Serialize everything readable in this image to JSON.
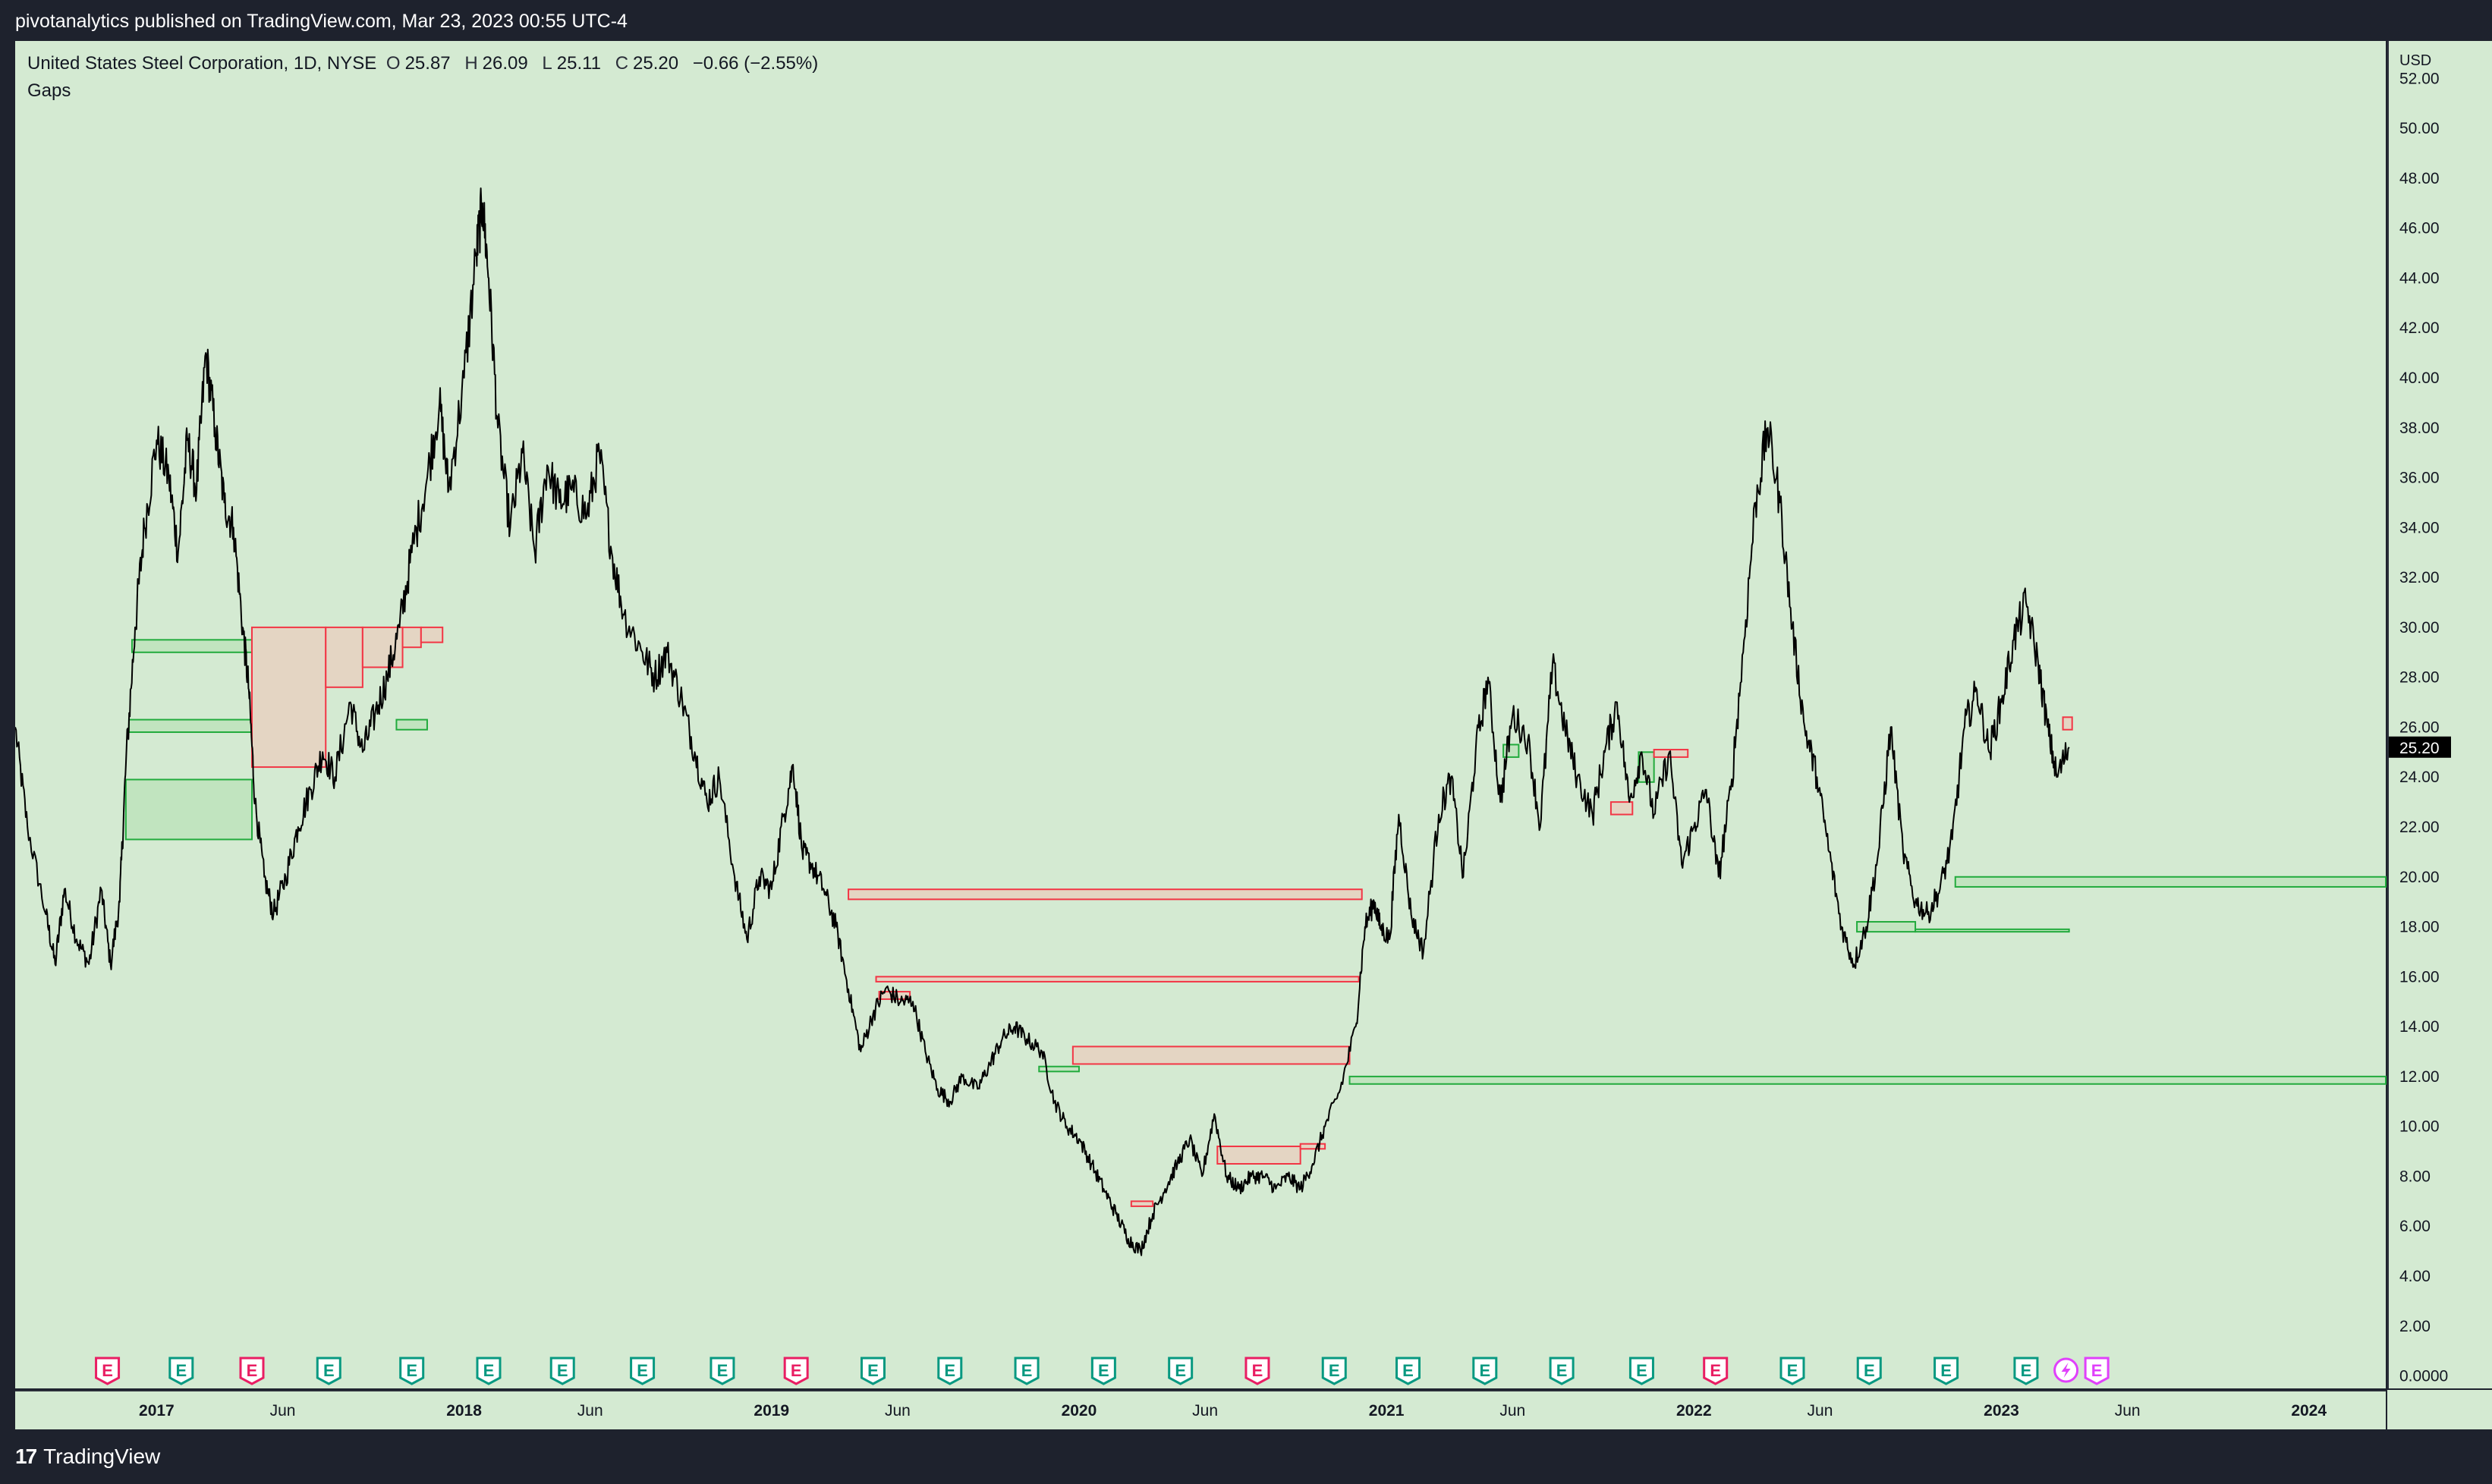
{
  "header": {
    "publisher_line": "pivotanalytics published on TradingView.com, Mar 23, 2023 00:55 UTC-4"
  },
  "legend": {
    "symbol": "United States Steel Corporation, 1D, NYSE",
    "open_label": "O",
    "open": "25.87",
    "high_label": "H",
    "high": "26.09",
    "low_label": "L",
    "low": "25.11",
    "close_label": "C",
    "close": "25.20",
    "change": "−0.66 (−2.55%)",
    "indicator": "Gaps"
  },
  "footer": {
    "brand": "TradingView",
    "brand_mark": "17"
  },
  "colors": {
    "background": "#d4ead2",
    "price_line": "#000000",
    "gap_up": "#22ab3d",
    "gap_up_fill": "#bfe3bd",
    "gap_down": "#f23645",
    "gap_down_fill": "#e6d3c1",
    "earnings_red": "#e91e63",
    "earnings_teal": "#089981",
    "event_purple": "#e040fb"
  },
  "chart_data": {
    "type": "line",
    "title": "United States Steel Corporation, 1D, NYSE",
    "currency": "USD",
    "last_price": "25.20",
    "y_axis": {
      "unit": "USD",
      "ylim": [
        -0.5,
        53.5
      ],
      "ticks": [
        "52.00",
        "50.00",
        "48.00",
        "46.00",
        "44.00",
        "42.00",
        "40.00",
        "38.00",
        "36.00",
        "34.00",
        "32.00",
        "30.00",
        "28.00",
        "26.00",
        "24.00",
        "22.00",
        "20.00",
        "18.00",
        "16.00",
        "14.00",
        "12.00",
        "10.00",
        "8.00",
        "6.00",
        "4.00",
        "2.00",
        "0.0000"
      ]
    },
    "x_axis": {
      "xlim": [
        2016.54,
        2024.25
      ],
      "ticks": [
        {
          "label": "2017",
          "x": 2017.0,
          "bold": true
        },
        {
          "label": "Jun",
          "x": 2017.41
        },
        {
          "label": "2018",
          "x": 2018.0,
          "bold": true
        },
        {
          "label": "Jun",
          "x": 2018.41
        },
        {
          "label": "2019",
          "x": 2019.0,
          "bold": true
        },
        {
          "label": "Jun",
          "x": 2019.41
        },
        {
          "label": "2020",
          "x": 2020.0,
          "bold": true
        },
        {
          "label": "Jun",
          "x": 2020.41
        },
        {
          "label": "2021",
          "x": 2021.0,
          "bold": true
        },
        {
          "label": "Jun",
          "x": 2021.41
        },
        {
          "label": "2022",
          "x": 2022.0,
          "bold": true
        },
        {
          "label": "Jun",
          "x": 2022.41
        },
        {
          "label": "2023",
          "x": 2023.0,
          "bold": true
        },
        {
          "label": "Jun",
          "x": 2023.41
        },
        {
          "label": "2024",
          "x": 2024.0,
          "bold": true
        }
      ]
    },
    "price_series": {
      "name": "Close",
      "points": [
        [
          2016.54,
          26.0
        ],
        [
          2016.58,
          22.0
        ],
        [
          2016.64,
          18.5
        ],
        [
          2016.67,
          16.5
        ],
        [
          2016.7,
          19.5
        ],
        [
          2016.74,
          17.5
        ],
        [
          2016.78,
          16.5
        ],
        [
          2016.82,
          19.5
        ],
        [
          2016.85,
          16.5
        ],
        [
          2016.88,
          19.0
        ],
        [
          2016.9,
          24.5
        ],
        [
          2016.93,
          30.0
        ],
        [
          2016.96,
          34.0
        ],
        [
          2017.0,
          37.5
        ],
        [
          2017.04,
          36.0
        ],
        [
          2017.07,
          33.0
        ],
        [
          2017.1,
          37.5
        ],
        [
          2017.13,
          35.5
        ],
        [
          2017.16,
          41.0
        ],
        [
          2017.19,
          38.0
        ],
        [
          2017.22,
          35.0
        ],
        [
          2017.25,
          34.0
        ],
        [
          2017.28,
          30.0
        ],
        [
          2017.3,
          27.5
        ],
        [
          2017.32,
          23.0
        ],
        [
          2017.35,
          20.0
        ],
        [
          2017.38,
          18.5
        ],
        [
          2017.42,
          20.0
        ],
        [
          2017.46,
          22.0
        ],
        [
          2017.5,
          23.5
        ],
        [
          2017.54,
          25.0
        ],
        [
          2017.58,
          24.0
        ],
        [
          2017.63,
          27.0
        ],
        [
          2017.67,
          25.0
        ],
        [
          2017.71,
          26.5
        ],
        [
          2017.75,
          28.0
        ],
        [
          2017.79,
          30.0
        ],
        [
          2017.83,
          33.0
        ],
        [
          2017.88,
          36.0
        ],
        [
          2017.92,
          39.0
        ],
        [
          2017.95,
          35.5
        ],
        [
          2018.0,
          40.0
        ],
        [
          2018.04,
          45.0
        ],
        [
          2018.06,
          47.0
        ],
        [
          2018.08,
          44.0
        ],
        [
          2018.11,
          38.0
        ],
        [
          2018.15,
          34.0
        ],
        [
          2018.19,
          37.0
        ],
        [
          2018.23,
          33.0
        ],
        [
          2018.27,
          36.5
        ],
        [
          2018.31,
          35.0
        ],
        [
          2018.35,
          35.5
        ],
        [
          2018.4,
          34.5
        ],
        [
          2018.44,
          37.0
        ],
        [
          2018.48,
          33.0
        ],
        [
          2018.52,
          30.5
        ],
        [
          2018.58,
          29.0
        ],
        [
          2018.62,
          28.0
        ],
        [
          2018.66,
          29.0
        ],
        [
          2018.71,
          27.0
        ],
        [
          2018.75,
          25.0
        ],
        [
          2018.79,
          23.0
        ],
        [
          2018.83,
          24.0
        ],
        [
          2018.88,
          20.0
        ],
        [
          2018.92,
          17.5
        ],
        [
          2018.96,
          20.0
        ],
        [
          2019.0,
          19.5
        ],
        [
          2019.04,
          22.5
        ],
        [
          2019.07,
          24.5
        ],
        [
          2019.1,
          21.0
        ],
        [
          2019.13,
          20.5
        ],
        [
          2019.17,
          19.5
        ],
        [
          2019.21,
          18.0
        ],
        [
          2019.25,
          15.5
        ],
        [
          2019.29,
          13.0
        ],
        [
          2019.33,
          14.5
        ],
        [
          2019.37,
          15.5
        ],
        [
          2019.42,
          15.0
        ],
        [
          2019.46,
          15.0
        ],
        [
          2019.5,
          13.0
        ],
        [
          2019.54,
          11.5
        ],
        [
          2019.58,
          11.0
        ],
        [
          2019.62,
          12.0
        ],
        [
          2019.67,
          11.5
        ],
        [
          2019.71,
          12.5
        ],
        [
          2019.75,
          13.5
        ],
        [
          2019.79,
          14.0
        ],
        [
          2019.83,
          13.5
        ],
        [
          2019.88,
          13.0
        ],
        [
          2019.92,
          11.0
        ],
        [
          2019.96,
          10.0
        ],
        [
          2020.0,
          9.5
        ],
        [
          2020.04,
          8.5
        ],
        [
          2020.08,
          7.5
        ],
        [
          2020.12,
          6.5
        ],
        [
          2020.16,
          5.5
        ],
        [
          2020.2,
          5.0
        ],
        [
          2020.24,
          6.5
        ],
        [
          2020.28,
          7.5
        ],
        [
          2020.32,
          8.5
        ],
        [
          2020.36,
          9.5
        ],
        [
          2020.4,
          8.0
        ],
        [
          2020.44,
          10.5
        ],
        [
          2020.48,
          8.0
        ],
        [
          2020.52,
          7.5
        ],
        [
          2020.56,
          8.0
        ],
        [
          2020.6,
          8.0
        ],
        [
          2020.64,
          7.5
        ],
        [
          2020.68,
          8.0
        ],
        [
          2020.72,
          7.5
        ],
        [
          2020.76,
          8.5
        ],
        [
          2020.8,
          10.0
        ],
        [
          2020.85,
          11.5
        ],
        [
          2020.9,
          14.0
        ],
        [
          2020.93,
          18.0
        ],
        [
          2020.96,
          19.0
        ],
        [
          2020.98,
          18.0
        ],
        [
          2021.01,
          17.5
        ],
        [
          2021.04,
          22.5
        ],
        [
          2021.08,
          18.5
        ],
        [
          2021.12,
          17.0
        ],
        [
          2021.17,
          22.5
        ],
        [
          2021.21,
          24.0
        ],
        [
          2021.25,
          20.0
        ],
        [
          2021.29,
          25.0
        ],
        [
          2021.33,
          28.0
        ],
        [
          2021.37,
          23.0
        ],
        [
          2021.41,
          26.5
        ],
        [
          2021.46,
          25.5
        ],
        [
          2021.5,
          22.0
        ],
        [
          2021.54,
          28.5
        ],
        [
          2021.58,
          26.0
        ],
        [
          2021.62,
          24.0
        ],
        [
          2021.67,
          22.5
        ],
        [
          2021.71,
          25.0
        ],
        [
          2021.75,
          27.0
        ],
        [
          2021.79,
          23.0
        ],
        [
          2021.83,
          25.0
        ],
        [
          2021.87,
          22.5
        ],
        [
          2021.92,
          25.0
        ],
        [
          2021.96,
          20.5
        ],
        [
          2022.0,
          22.0
        ],
        [
          2022.04,
          23.5
        ],
        [
          2022.08,
          20.0
        ],
        [
          2022.12,
          23.5
        ],
        [
          2022.16,
          29.0
        ],
        [
          2022.2,
          35.0
        ],
        [
          2022.24,
          38.0
        ],
        [
          2022.28,
          35.0
        ],
        [
          2022.32,
          30.0
        ],
        [
          2022.36,
          26.0
        ],
        [
          2022.4,
          24.0
        ],
        [
          2022.44,
          21.0
        ],
        [
          2022.48,
          18.0
        ],
        [
          2022.52,
          16.5
        ],
        [
          2022.56,
          18.0
        ],
        [
          2022.6,
          21.0
        ],
        [
          2022.64,
          26.0
        ],
        [
          2022.68,
          21.0
        ],
        [
          2022.72,
          19.0
        ],
        [
          2022.76,
          18.5
        ],
        [
          2022.8,
          19.5
        ],
        [
          2022.84,
          21.5
        ],
        [
          2022.88,
          26.0
        ],
        [
          2022.92,
          27.5
        ],
        [
          2022.96,
          25.0
        ],
        [
          2023.0,
          27.0
        ],
        [
          2023.04,
          29.5
        ],
        [
          2023.08,
          31.0
        ],
        [
          2023.12,
          28.5
        ],
        [
          2023.15,
          26.0
        ],
        [
          2023.18,
          24.0
        ],
        [
          2023.22,
          25.2
        ]
      ]
    },
    "gap_zones": [
      {
        "dir": "up",
        "x0": 2016.92,
        "x1": 2017.31,
        "y0": 29.0,
        "y1": 29.5
      },
      {
        "dir": "up",
        "x0": 2016.91,
        "x1": 2017.31,
        "y0": 25.8,
        "y1": 26.3
      },
      {
        "dir": "up",
        "x0": 2016.9,
        "x1": 2017.31,
        "y0": 21.5,
        "y1": 23.9
      },
      {
        "dir": "down",
        "x0": 2017.31,
        "x1": 2017.55,
        "y0": 24.4,
        "y1": 30.0
      },
      {
        "dir": "down",
        "x0": 2017.55,
        "x1": 2017.67,
        "y0": 27.6,
        "y1": 30.0
      },
      {
        "dir": "down",
        "x0": 2017.67,
        "x1": 2017.8,
        "y0": 28.4,
        "y1": 30.0
      },
      {
        "dir": "down",
        "x0": 2017.8,
        "x1": 2017.86,
        "y0": 29.2,
        "y1": 30.0
      },
      {
        "dir": "down",
        "x0": 2017.86,
        "x1": 2017.93,
        "y0": 29.4,
        "y1": 30.0
      },
      {
        "dir": "up",
        "x0": 2017.78,
        "x1": 2017.88,
        "y0": 25.9,
        "y1": 26.3
      },
      {
        "dir": "down",
        "x0": 2019.25,
        "x1": 2020.92,
        "y0": 19.1,
        "y1": 19.5
      },
      {
        "dir": "down",
        "x0": 2019.34,
        "x1": 2020.91,
        "y0": 15.8,
        "y1": 16.0
      },
      {
        "dir": "down",
        "x0": 2019.35,
        "x1": 2019.45,
        "y0": 15.1,
        "y1": 15.4
      },
      {
        "dir": "down",
        "x0": 2019.98,
        "x1": 2020.88,
        "y0": 12.5,
        "y1": 13.2
      },
      {
        "dir": "up",
        "x0": 2019.87,
        "x1": 2020.0,
        "y0": 12.2,
        "y1": 12.4
      },
      {
        "dir": "down",
        "x0": 2020.45,
        "x1": 2020.72,
        "y0": 8.5,
        "y1": 9.2
      },
      {
        "dir": "down",
        "x0": 2020.72,
        "x1": 2020.8,
        "y0": 9.1,
        "y1": 9.3
      },
      {
        "dir": "down",
        "x0": 2020.17,
        "x1": 2020.24,
        "y0": 6.8,
        "y1": 7.0
      },
      {
        "dir": "up",
        "x0": 2020.88,
        "x1": 2024.25,
        "y0": 11.7,
        "y1": 12.0
      },
      {
        "dir": "up",
        "x0": 2022.85,
        "x1": 2024.25,
        "y0": 19.6,
        "y1": 20.0
      },
      {
        "dir": "up",
        "x0": 2022.53,
        "x1": 2022.72,
        "y0": 17.8,
        "y1": 18.2
      },
      {
        "dir": "up",
        "x0": 2022.72,
        "x1": 2023.22,
        "y0": 17.8,
        "y1": 17.9
      },
      {
        "dir": "up",
        "x0": 2021.82,
        "x1": 2021.87,
        "y0": 23.8,
        "y1": 25.0
      },
      {
        "dir": "up",
        "x0": 2021.38,
        "x1": 2021.43,
        "y0": 24.8,
        "y1": 25.3
      },
      {
        "dir": "down",
        "x0": 2021.87,
        "x1": 2021.98,
        "y0": 24.8,
        "y1": 25.1
      },
      {
        "dir": "down",
        "x0": 2021.73,
        "x1": 2021.8,
        "y0": 22.5,
        "y1": 23.0
      },
      {
        "dir": "down",
        "x0": 2023.2,
        "x1": 2023.23,
        "y0": 25.9,
        "y1": 26.4
      }
    ],
    "events": [
      {
        "x": 2016.84,
        "type": "E",
        "color": "red"
      },
      {
        "x": 2017.08,
        "type": "E",
        "color": "teal"
      },
      {
        "x": 2017.31,
        "type": "E",
        "color": "red"
      },
      {
        "x": 2017.56,
        "type": "E",
        "color": "teal"
      },
      {
        "x": 2017.83,
        "type": "E",
        "color": "teal"
      },
      {
        "x": 2018.08,
        "type": "E",
        "color": "teal"
      },
      {
        "x": 2018.32,
        "type": "E",
        "color": "teal"
      },
      {
        "x": 2018.58,
        "type": "E",
        "color": "teal"
      },
      {
        "x": 2018.84,
        "type": "E",
        "color": "teal"
      },
      {
        "x": 2019.08,
        "type": "E",
        "color": "red"
      },
      {
        "x": 2019.33,
        "type": "E",
        "color": "teal"
      },
      {
        "x": 2019.58,
        "type": "E",
        "color": "teal"
      },
      {
        "x": 2019.83,
        "type": "E",
        "color": "teal"
      },
      {
        "x": 2020.08,
        "type": "E",
        "color": "teal"
      },
      {
        "x": 2020.33,
        "type": "E",
        "color": "teal"
      },
      {
        "x": 2020.58,
        "type": "E",
        "color": "red"
      },
      {
        "x": 2020.83,
        "type": "E",
        "color": "teal"
      },
      {
        "x": 2021.07,
        "type": "E",
        "color": "teal"
      },
      {
        "x": 2021.32,
        "type": "E",
        "color": "teal"
      },
      {
        "x": 2021.57,
        "type": "E",
        "color": "teal"
      },
      {
        "x": 2021.83,
        "type": "E",
        "color": "teal"
      },
      {
        "x": 2022.07,
        "type": "E",
        "color": "red"
      },
      {
        "x": 2022.32,
        "type": "E",
        "color": "teal"
      },
      {
        "x": 2022.57,
        "type": "E",
        "color": "teal"
      },
      {
        "x": 2022.82,
        "type": "E",
        "color": "teal"
      },
      {
        "x": 2023.08,
        "type": "E",
        "color": "teal"
      },
      {
        "x": 2023.21,
        "type": "bolt",
        "color": "purple"
      },
      {
        "x": 2023.31,
        "type": "E",
        "color": "purple"
      }
    ],
    "grid": false,
    "legend_position": "top-left"
  }
}
